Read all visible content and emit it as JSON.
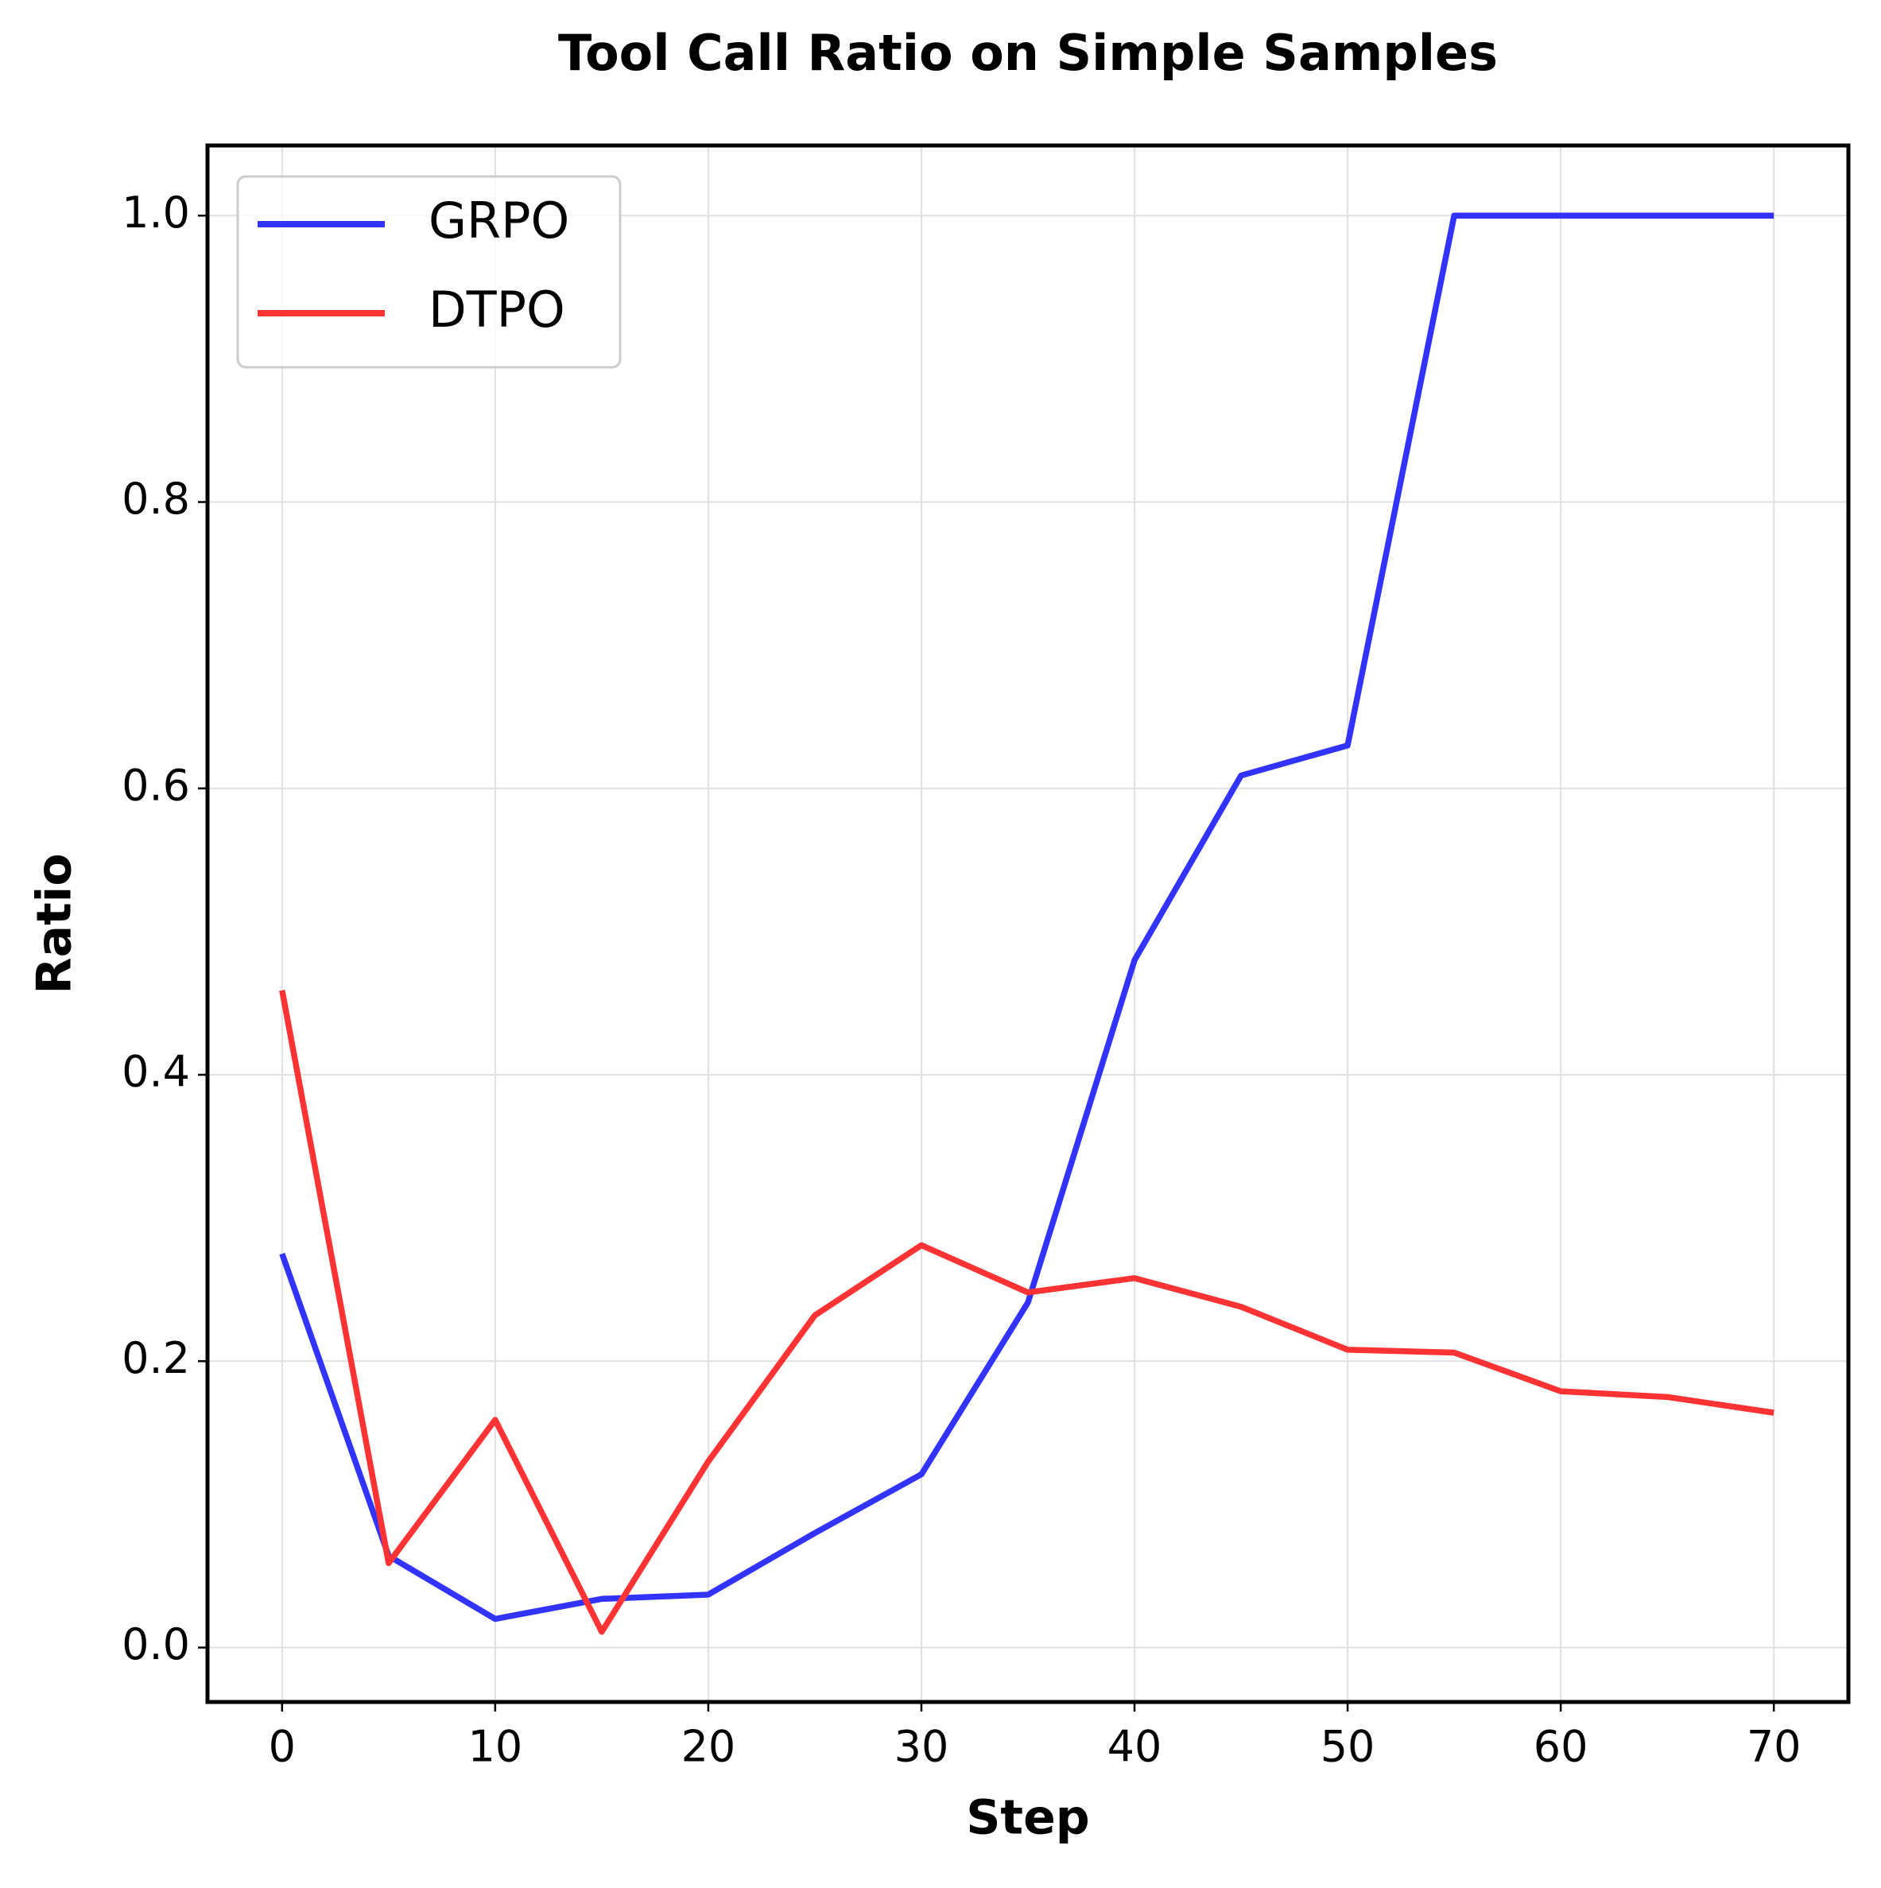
{
  "chart_data": {
    "type": "line",
    "title": "Tool Call Ratio on Simple Samples",
    "x_label": "Step",
    "y_label": "Ratio",
    "x": [
      0,
      5,
      10,
      15,
      20,
      25,
      30,
      35,
      40,
      45,
      50,
      55,
      60,
      65,
      70
    ],
    "series": [
      {
        "name": "GRPO",
        "color": "#3333ff",
        "values": [
          0.275,
          0.064,
          0.02,
          0.034,
          0.037,
          0.08,
          0.121,
          0.241,
          0.48,
          0.609,
          0.63,
          1.0,
          1.0,
          1.0,
          1.0
        ]
      },
      {
        "name": "DTPO",
        "color": "#ff3333",
        "values": [
          0.459,
          0.059,
          0.159,
          0.011,
          0.13,
          0.232,
          0.281,
          0.248,
          0.258,
          0.238,
          0.208,
          0.206,
          0.179,
          0.175,
          0.164
        ]
      }
    ],
    "xlim": [
      -3.5,
      73.5
    ],
    "xticks": [
      0,
      10,
      20,
      30,
      40,
      50,
      60,
      70
    ],
    "ylim": [
      -0.038,
      1.049
    ],
    "yticks": [
      {
        "value": 0,
        "label": "0.0"
      },
      0.2,
      0.4,
      0.6,
      0.8,
      {
        "value": 1,
        "label": "1.0"
      }
    ],
    "grid": true,
    "legend": "upper left"
  }
}
